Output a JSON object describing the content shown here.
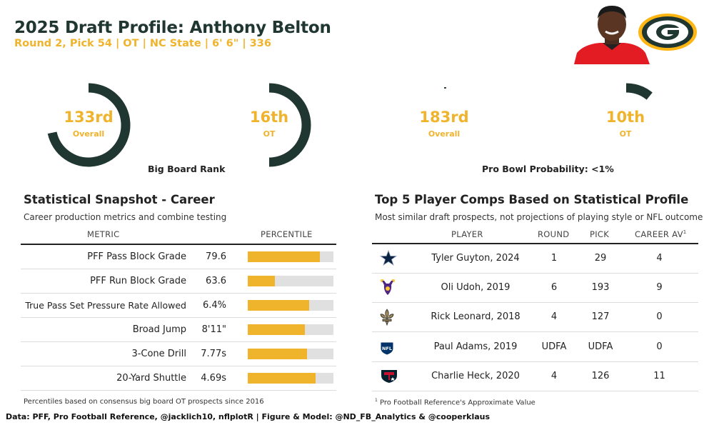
{
  "header": {
    "title": "2025 Draft Profile: Anthony Belton",
    "subtitle": "Round 2, Pick 54 | OT | NC State | 6' 6\" | 336"
  },
  "gauges": {
    "big_board": {
      "overall_rank": "133rd",
      "overall_label": "Overall",
      "position_rank": "16th",
      "position_label": "OT",
      "caption": "Big Board Rank"
    },
    "pro_bowl": {
      "overall_rank": "183rd",
      "overall_label": "Overall",
      "position_rank": "10th",
      "position_label": "OT",
      "caption": "Pro Bowl Probability: <1%"
    }
  },
  "snapshot": {
    "title": "Statistical Snapshot - Career",
    "subtitle": "Career production metrics and combine testing",
    "col_metric": "METRIC",
    "col_percentile": "PERCENTILE",
    "rows": [
      {
        "metric": "PFF Pass Block Grade",
        "value": "79.6",
        "percentile": 0.84
      },
      {
        "metric": "PFF Run Block Grade",
        "value": "63.6",
        "percentile": 0.32
      },
      {
        "metric": "True Pass Set Pressure Rate Allowed",
        "value": "6.4%",
        "percentile": 0.72
      },
      {
        "metric": "Broad Jump",
        "value": "8'11\"",
        "percentile": 0.67
      },
      {
        "metric": "3-Cone Drill",
        "value": "7.77s",
        "percentile": 0.69
      },
      {
        "metric": "20-Yard Shuttle",
        "value": "4.69s",
        "percentile": 0.79
      }
    ],
    "footnote": "Percentiles based on consensus big board OT prospects since 2016"
  },
  "comps": {
    "title": "Top 5 Player Comps Based on Statistical Profile",
    "subtitle": "Most similar draft prospects, not projections of playing style or NFL outcome",
    "col_player": "PLAYER",
    "col_round": "ROUND",
    "col_pick": "PICK",
    "col_av": "CAREER AV",
    "col_av_mark": "1",
    "rows": [
      {
        "team_icon": "cowboys-star-icon",
        "player": "Tyler Guyton, 2024",
        "round": "1",
        "pick": "29",
        "av": "4"
      },
      {
        "team_icon": "vikings-icon",
        "player": "Oli Udoh, 2019",
        "round": "6",
        "pick": "193",
        "av": "9"
      },
      {
        "team_icon": "saints-fleur-de-lis-icon",
        "player": "Rick Leonard, 2018",
        "round": "4",
        "pick": "127",
        "av": "0"
      },
      {
        "team_icon": "nfl-shield-icon",
        "player": "Paul Adams, 2019",
        "round": "UDFA",
        "pick": "UDFA",
        "av": "0"
      },
      {
        "team_icon": "texans-icon",
        "player": "Charlie Heck, 2020",
        "round": "4",
        "pick": "126",
        "av": "11"
      }
    ],
    "footnote_mark": "1",
    "footnote": "Pro Football Reference's Approximate Value"
  },
  "footer": "Data: PFF, Pro Football Reference, @jacklich10, nflplotR | Figure & Model: @ND_FB_Analytics & @cooperklaus",
  "colors": {
    "accent": "#f0b32c",
    "dark_green": "#203731",
    "bar_bg": "#e0e0e0",
    "cowboys": "#0a2342",
    "texans": "#03202f",
    "texans_red": "#c8102e",
    "nfl": "#013369",
    "saints": "#9f8958"
  }
}
